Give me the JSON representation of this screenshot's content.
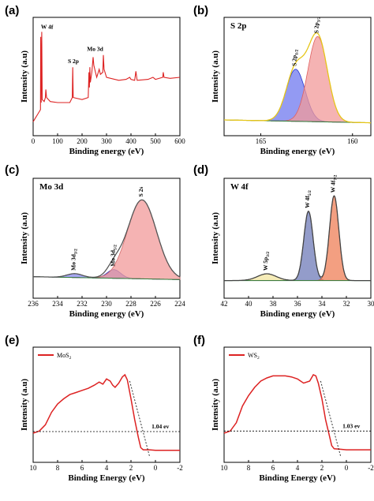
{
  "chart_data": [
    {
      "id": "a",
      "panel_label": "(a)",
      "type": "line",
      "xlabel": "Binding energy (eV)",
      "ylabel": "Intensity (a.u)",
      "xlim": [
        0,
        600
      ],
      "xticks": [
        0,
        100,
        200,
        300,
        400,
        500,
        600
      ],
      "annotations": [
        "W 4f",
        "Mo 3d",
        "S 2p"
      ],
      "colors": {
        "survey": "#dd2222"
      },
      "series": [
        {
          "values": [
            [
              0,
              0.06
            ],
            [
              10,
              0.1
            ],
            [
              20,
              0.14
            ],
            [
              30,
              0.18
            ],
            [
              31,
              0.9
            ],
            [
              33,
              0.25
            ],
            [
              35,
              0.95
            ],
            [
              37,
              0.28
            ],
            [
              45,
              0.26
            ],
            [
              50,
              0.3
            ],
            [
              52,
              0.38
            ],
            [
              55,
              0.3
            ],
            [
              70,
              0.26
            ],
            [
              100,
              0.25
            ],
            [
              150,
              0.25
            ],
            [
              160,
              0.3
            ],
            [
              162,
              0.6
            ],
            [
              164,
              0.3
            ],
            [
              200,
              0.28
            ],
            [
              225,
              0.3
            ],
            [
              228,
              0.55
            ],
            [
              230,
              0.4
            ],
            [
              232,
              0.6
            ],
            [
              234,
              0.45
            ],
            [
              240,
              0.55
            ],
            [
              245,
              0.7
            ],
            [
              248,
              0.62
            ],
            [
              255,
              0.55
            ],
            [
              260,
              0.5
            ],
            [
              270,
              0.58
            ],
            [
              275,
              0.53
            ],
            [
              285,
              0.55
            ],
            [
              287,
              0.72
            ],
            [
              290,
              0.58
            ],
            [
              300,
              0.5
            ],
            [
              350,
              0.47
            ],
            [
              380,
              0.48
            ],
            [
              395,
              0.5
            ],
            [
              400,
              0.48
            ],
            [
              415,
              0.47
            ],
            [
              420,
              0.56
            ],
            [
              425,
              0.47
            ],
            [
              470,
              0.48
            ],
            [
              490,
              0.5
            ],
            [
              500,
              0.48
            ],
            [
              530,
              0.5
            ],
            [
              532,
              0.55
            ],
            [
              535,
              0.5
            ],
            [
              560,
              0.49
            ],
            [
              600,
              0.5
            ]
          ]
        }
      ]
    },
    {
      "id": "b",
      "panel_label": "(b)",
      "type": "area",
      "title": "S 2p",
      "xlabel": "Binding energy (eV)",
      "ylabel": "Intensity (a.u)",
      "xlim": [
        167,
        159
      ],
      "xticks": [
        165,
        160
      ],
      "colors": {
        "envelope": "#e6c619",
        "fit1": "#8a8aee",
        "fit2": "#f4a0a0",
        "baseline": "#2f7d3a"
      },
      "series": [
        {
          "name": "S 2p1/2",
          "center": 163.1,
          "fwhm": 1.2,
          "height": 0.55
        },
        {
          "name": "S 2p3/2",
          "center": 161.9,
          "fwhm": 1.25,
          "height": 0.9
        }
      ],
      "peak_labels": [
        "S 2p1/2",
        "S 2p3/2"
      ]
    },
    {
      "id": "c",
      "panel_label": "(c)",
      "type": "area",
      "title": "Mo 3d",
      "xlabel": "Binding energy (eV)",
      "ylabel": "Intensity (a.u)",
      "xlim": [
        236,
        224
      ],
      "xticks": [
        236,
        234,
        232,
        230,
        228,
        226,
        224
      ],
      "colors": {
        "envelope": "#444444",
        "s2s": "#f4a0a0",
        "mo32": "#8a8aee",
        "mo52": "#8a8aee",
        "baseline": "#2f7d3a"
      },
      "series": [
        {
          "name": "Mo 3d3/2",
          "center": 232.6,
          "fwhm": 1.5,
          "height": 0.04
        },
        {
          "name": "Mo 3d5/2",
          "center": 229.4,
          "fwhm": 1.3,
          "height": 0.09
        },
        {
          "name": "S 2s",
          "center": 227.1,
          "fwhm": 2.8,
          "height": 0.82
        }
      ],
      "peak_labels": [
        "Mo 3d3/2",
        "Mo 3d5/2",
        "S 2s"
      ]
    },
    {
      "id": "d",
      "panel_label": "(d)",
      "type": "area",
      "title": "W 4f",
      "xlabel": "Binding energy (eV)",
      "ylabel": "Intensity (a.u)",
      "xlim": [
        42,
        30
      ],
      "xticks": [
        42,
        40,
        38,
        36,
        34,
        32,
        30
      ],
      "colors": {
        "envelope": "#444444",
        "w5p": "#f3e6a0",
        "w4f52": "#7f86b8",
        "w4f72": "#ef8a66",
        "baseline": "#2f7d3a"
      },
      "series": [
        {
          "name": "W 5p3/2",
          "center": 38.5,
          "fwhm": 1.8,
          "height": 0.07
        },
        {
          "name": "W 4f5/2",
          "center": 35.1,
          "fwhm": 0.9,
          "height": 0.72
        },
        {
          "name": "W 4f7/2",
          "center": 33.0,
          "fwhm": 0.9,
          "height": 0.88
        }
      ],
      "peak_labels": [
        "W 5p3/2",
        "W 4f5/2",
        "W 4f7/2"
      ]
    },
    {
      "id": "e",
      "panel_label": "(e)",
      "type": "line",
      "xlabel": "Binding Energy (eV)",
      "ylabel": "Intensity (a.u)",
      "xlim": [
        10,
        -2
      ],
      "xticks": [
        10,
        8,
        6,
        4,
        2,
        0,
        -2
      ],
      "legend": [
        "MoS2"
      ],
      "legend_position": "top-left",
      "annotation": "1.04 ev",
      "colors": {
        "line": "#dd2222"
      },
      "series": [
        {
          "name": "MoS2",
          "values": [
            [
              10,
              0.22
            ],
            [
              9.5,
              0.24
            ],
            [
              9,
              0.3
            ],
            [
              8.5,
              0.42
            ],
            [
              8,
              0.5
            ],
            [
              7.5,
              0.55
            ],
            [
              7,
              0.59
            ],
            [
              6.5,
              0.61
            ],
            [
              6,
              0.63
            ],
            [
              5.5,
              0.65
            ],
            [
              5,
              0.68
            ],
            [
              4.6,
              0.71
            ],
            [
              4.3,
              0.69
            ],
            [
              4,
              0.74
            ],
            [
              3.7,
              0.72
            ],
            [
              3.5,
              0.68
            ],
            [
              3.3,
              0.66
            ],
            [
              3,
              0.7
            ],
            [
              2.7,
              0.76
            ],
            [
              2.5,
              0.78
            ],
            [
              2.3,
              0.73
            ],
            [
              2,
              0.55
            ],
            [
              1.7,
              0.35
            ],
            [
              1.4,
              0.18
            ],
            [
              1.2,
              0.08
            ],
            [
              1.0,
              0.06
            ],
            [
              0.5,
              0.06
            ],
            [
              0,
              0.055
            ],
            [
              -1,
              0.055
            ],
            [
              -2,
              0.055
            ]
          ]
        }
      ],
      "extrapolation": {
        "x_intercept": 1.04
      }
    },
    {
      "id": "f",
      "panel_label": "(f)",
      "type": "line",
      "xlabel": "Binding Energy (eV)",
      "ylabel": "Intensity (a.u)",
      "xlim": [
        10,
        -2
      ],
      "xticks": [
        10,
        8,
        6,
        4,
        2,
        0,
        -2
      ],
      "legend": [
        "WS2"
      ],
      "legend_position": "top-left",
      "annotation": "1.03 ev",
      "colors": {
        "line": "#dd2222"
      },
      "series": [
        {
          "name": "WS2",
          "values": [
            [
              10,
              0.22
            ],
            [
              9.5,
              0.24
            ],
            [
              9,
              0.32
            ],
            [
              8.5,
              0.48
            ],
            [
              8,
              0.58
            ],
            [
              7.5,
              0.66
            ],
            [
              7,
              0.72
            ],
            [
              6.5,
              0.75
            ],
            [
              6,
              0.77
            ],
            [
              5.5,
              0.77
            ],
            [
              5,
              0.77
            ],
            [
              4.5,
              0.76
            ],
            [
              4,
              0.74
            ],
            [
              3.5,
              0.7
            ],
            [
              3,
              0.72
            ],
            [
              2.7,
              0.78
            ],
            [
              2.5,
              0.77
            ],
            [
              2.3,
              0.7
            ],
            [
              2,
              0.55
            ],
            [
              1.7,
              0.35
            ],
            [
              1.4,
              0.2
            ],
            [
              1.2,
              0.1
            ],
            [
              1.0,
              0.07
            ],
            [
              0.5,
              0.065
            ],
            [
              0,
              0.06
            ],
            [
              -1,
              0.06
            ],
            [
              -2,
              0.06
            ]
          ]
        }
      ],
      "extrapolation": {
        "x_intercept": 1.03
      }
    }
  ]
}
